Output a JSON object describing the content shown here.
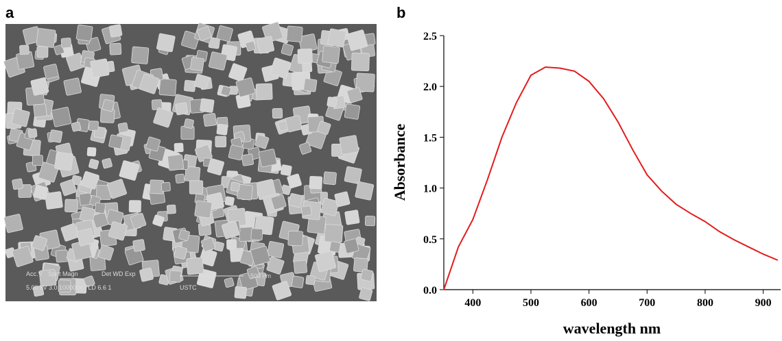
{
  "panel_a": {
    "label": "a",
    "sem_info": {
      "acc_v": "Acc.V",
      "spot": "Spot Magn",
      "det": "Det WD  Exp",
      "scale": "500 nm",
      "values": "5.00 kV 3.0  100000x TLD 6.6  1",
      "lab": "USTC"
    }
  },
  "chart_data": {
    "type": "line",
    "label": "b",
    "xlabel": "wavelength nm",
    "ylabel": "Absorbance",
    "x": [
      350,
      375,
      400,
      425,
      450,
      475,
      500,
      525,
      550,
      575,
      600,
      625,
      650,
      675,
      700,
      725,
      750,
      775,
      800,
      825,
      850,
      875,
      900,
      925
    ],
    "series": [
      {
        "name": "Absorbance",
        "color": "#e41a1c",
        "values": [
          0.0,
          0.42,
          0.69,
          1.08,
          1.5,
          1.84,
          2.11,
          2.19,
          2.18,
          2.15,
          2.05,
          1.88,
          1.65,
          1.38,
          1.13,
          0.97,
          0.84,
          0.75,
          0.67,
          0.57,
          0.49,
          0.42,
          0.35,
          0.29
        ]
      }
    ],
    "xlim": [
      350,
      930
    ],
    "ylim": [
      0,
      2.5
    ],
    "xticks": [
      400,
      500,
      600,
      700,
      800,
      900
    ],
    "yticks": [
      {
        "value": 0,
        "label": "0.0"
      },
      0.5,
      {
        "value": 1,
        "label": "1.0"
      },
      1.5,
      {
        "value": 2,
        "label": "2.0"
      },
      2.5
    ]
  }
}
